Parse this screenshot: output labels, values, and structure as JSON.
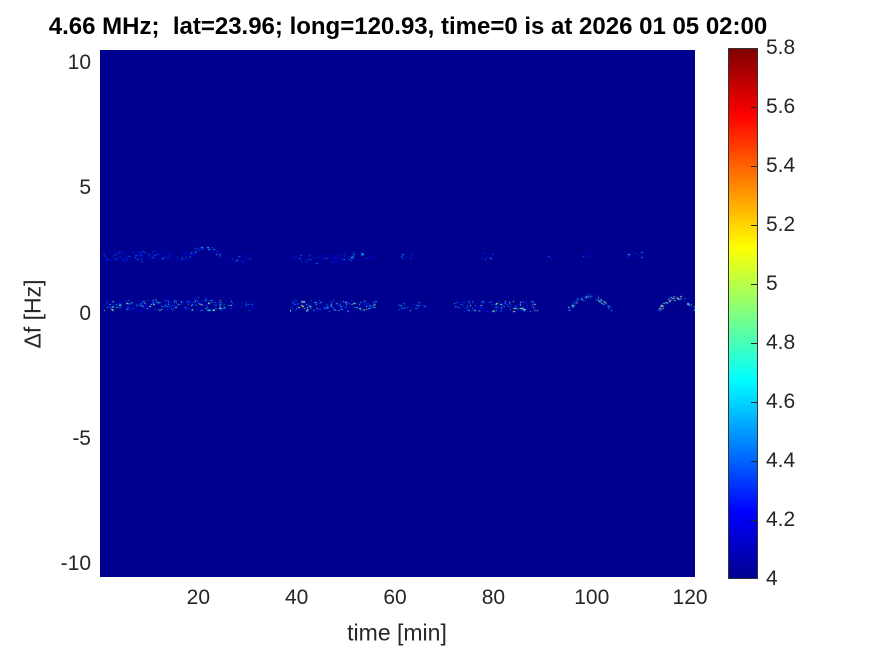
{
  "figure": {
    "title": "4.66 MHz;  lat=23.96; long=120.93, time=0 is at 2026 01 05 02:00",
    "xlabel": "time [min]",
    "ylabel": "Δf [Hz]"
  },
  "colors": {
    "figure_background": "#ffffff",
    "tick_label": "#262626",
    "title_text": "#000000",
    "plot_background": "#00008f",
    "jet_stops": [
      [
        0.0,
        "#00008f"
      ],
      [
        0.125,
        "#0000ff"
      ],
      [
        0.375,
        "#00ffff"
      ],
      [
        0.625,
        "#ffff00"
      ],
      [
        0.875,
        "#ff0000"
      ],
      [
        1.0,
        "#7f0000"
      ]
    ]
  },
  "chart_data": {
    "type": "heatmap",
    "title": "4.66 MHz;  lat=23.96; long=120.93, time=0 is at 2026 01 05 02:00",
    "xlabel": "time [min]",
    "ylabel": "Δf [Hz]",
    "xlim": [
      0,
      121
    ],
    "ylim": [
      -10.5,
      10.5
    ],
    "x_ticks": [
      20,
      40,
      60,
      80,
      100,
      120
    ],
    "y_ticks": [
      -10,
      -5,
      0,
      5,
      10
    ],
    "grid": false,
    "background_value": 4.0,
    "speckle_seed": 7,
    "colorbar": {
      "min": 4,
      "max": 5.8,
      "colormap": "jet",
      "position": "right",
      "ticks": [
        {
          "v": 4,
          "label": "4"
        },
        {
          "v": 4.2,
          "label": "4.2"
        },
        {
          "v": 4.4,
          "label": "4.4"
        },
        {
          "v": 4.6,
          "label": "4.6"
        },
        {
          "v": 4.8,
          "label": "4.8"
        },
        {
          "v": 5,
          "label": "5"
        },
        {
          "v": 5.2,
          "label": "5.2"
        },
        {
          "v": 5.4,
          "label": "5.4"
        },
        {
          "v": 5.6,
          "label": "5.6"
        },
        {
          "v": 5.8,
          "label": "5.8"
        }
      ]
    },
    "traces": [
      {
        "name": "primary-ridge-near-0Hz",
        "df_base": 0.3,
        "segments": [
          {
            "t0": 0.5,
            "t1": 19,
            "df": 0.35,
            "jitter": 0.22,
            "density": 3.0,
            "vmin": 4.15,
            "vmax": 5.0
          },
          {
            "t0": 19,
            "t1": 27.5,
            "df": 0.4,
            "jitter": 0.28,
            "density": 3.2,
            "vmin": 4.2,
            "vmax": 5.3
          },
          {
            "t0": 28,
            "t1": 31.5,
            "df": 0.3,
            "jitter": 0.18,
            "density": 1.6,
            "vmin": 4.15,
            "vmax": 4.8
          },
          {
            "t0": 38.5,
            "t1": 56,
            "df": 0.32,
            "jitter": 0.22,
            "density": 3.0,
            "vmin": 4.2,
            "vmax": 5.4
          },
          {
            "t0": 60.5,
            "t1": 67,
            "df": 0.3,
            "jitter": 0.18,
            "density": 1.4,
            "vmin": 4.15,
            "vmax": 4.9
          },
          {
            "t0": 72,
            "t1": 89,
            "df": 0.3,
            "jitter": 0.22,
            "density": 2.6,
            "vmin": 4.15,
            "vmax": 5.2
          },
          {
            "t0": 95,
            "t1": 104,
            "df": 0.15,
            "jitter": 0.55,
            "density": 2.4,
            "vmin": 4.3,
            "vmax": 5.5,
            "arc": true
          },
          {
            "t0": 113.5,
            "t1": 121,
            "df": 0.15,
            "jitter": 0.5,
            "density": 2.2,
            "vmin": 4.3,
            "vmax": 5.4,
            "arc": true
          }
        ]
      },
      {
        "name": "secondary-ridge-near-2Hz",
        "df_base": 2.25,
        "segments": [
          {
            "t0": 0.5,
            "t1": 18,
            "df": 2.3,
            "jitter": 0.2,
            "density": 2.4,
            "vmin": 4.1,
            "vmax": 4.6
          },
          {
            "t0": 18,
            "t1": 24.5,
            "df": 2.3,
            "jitter": 0.35,
            "density": 1.8,
            "vmin": 4.15,
            "vmax": 4.9,
            "arc": true
          },
          {
            "t0": 25.5,
            "t1": 31,
            "df": 2.25,
            "jitter": 0.18,
            "density": 1.4,
            "vmin": 4.1,
            "vmax": 4.6
          },
          {
            "t0": 38.5,
            "t1": 51,
            "df": 2.2,
            "jitter": 0.18,
            "density": 1.6,
            "vmin": 4.1,
            "vmax": 4.6
          },
          {
            "t0": 51,
            "t1": 56,
            "df": 2.3,
            "jitter": 0.15,
            "density": 1.0,
            "vmin": 4.15,
            "vmax": 4.8
          },
          {
            "t0": 61,
            "t1": 64,
            "df": 2.3,
            "jitter": 0.12,
            "density": 0.9,
            "vmin": 4.15,
            "vmax": 4.7
          },
          {
            "t0": 77,
            "t1": 80,
            "df": 2.3,
            "jitter": 0.12,
            "density": 1.1,
            "vmin": 4.15,
            "vmax": 4.8
          },
          {
            "t0": 90,
            "t1": 92,
            "df": 2.25,
            "jitter": 0.1,
            "density": 0.8,
            "vmin": 4.1,
            "vmax": 4.5
          },
          {
            "t0": 98,
            "t1": 100,
            "df": 2.3,
            "jitter": 0.1,
            "density": 0.9,
            "vmin": 4.15,
            "vmax": 4.7
          },
          {
            "t0": 106.5,
            "t1": 110,
            "df": 2.35,
            "jitter": 0.15,
            "density": 1.0,
            "vmin": 4.15,
            "vmax": 4.8
          }
        ]
      }
    ]
  }
}
